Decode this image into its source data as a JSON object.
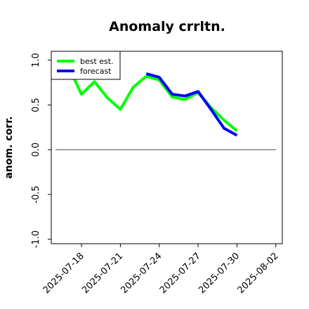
{
  "chart_data": {
    "type": "line",
    "title": "Anomaly crrltn.",
    "xlabel": "",
    "ylabel": "anom. corr.",
    "x_tick_labels": [
      "2025-07-18",
      "2025-07-21",
      "2025-07-24",
      "2025-07-27",
      "2025-07-30",
      "2025-08-02"
    ],
    "highlighted_tick": "2025-07-24",
    "highlight_color": "#228B22",
    "y_tick_labels": [
      "-1.0",
      "-0.5",
      "0.0",
      "0.5",
      "1.0"
    ],
    "ylim": [
      -1.05,
      1.1
    ],
    "xlim": [
      "2025-07-15T16:00",
      "2025-08-02T12:00"
    ],
    "grid": false,
    "legend_position": "top-left",
    "zero_line": {
      "from": "2025-07-16",
      "to": "2025-08-02",
      "color": "#555555"
    },
    "series": [
      {
        "name": "best est.",
        "color": "#00ff00",
        "points": [
          {
            "x": "2025-07-17",
            "y": 0.93
          },
          {
            "x": "2025-07-18",
            "y": 0.62
          },
          {
            "x": "2025-07-19",
            "y": 0.76
          },
          {
            "x": "2025-07-20",
            "y": 0.58
          },
          {
            "x": "2025-07-21",
            "y": 0.45
          },
          {
            "x": "2025-07-22",
            "y": 0.7
          },
          {
            "x": "2025-07-23",
            "y": 0.82
          },
          {
            "x": "2025-07-24",
            "y": 0.78
          },
          {
            "x": "2025-07-25",
            "y": 0.59
          },
          {
            "x": "2025-07-26",
            "y": 0.56
          },
          {
            "x": "2025-07-27",
            "y": 0.64
          },
          {
            "x": "2025-07-28",
            "y": 0.47
          },
          {
            "x": "2025-07-29",
            "y": 0.33
          },
          {
            "x": "2025-07-30",
            "y": 0.21
          }
        ]
      },
      {
        "name": "forecast",
        "color": "#0000ff",
        "points": [
          {
            "x": "2025-07-23",
            "y": 0.85
          },
          {
            "x": "2025-07-24",
            "y": 0.81
          },
          {
            "x": "2025-07-25",
            "y": 0.62
          },
          {
            "x": "2025-07-26",
            "y": 0.6
          },
          {
            "x": "2025-07-27",
            "y": 0.65
          },
          {
            "x": "2025-07-28",
            "y": 0.45
          },
          {
            "x": "2025-07-29",
            "y": 0.24
          },
          {
            "x": "2025-07-30",
            "y": 0.16
          }
        ]
      }
    ]
  }
}
